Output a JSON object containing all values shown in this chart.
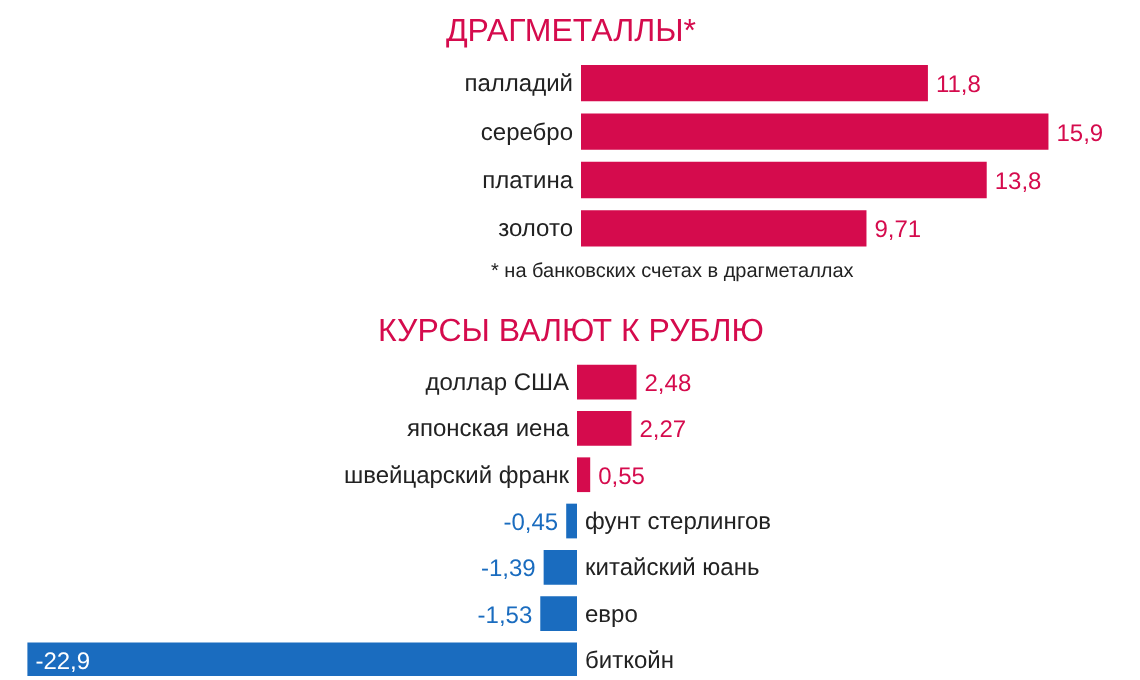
{
  "chart_data": [
    {
      "type": "bar",
      "orientation": "horizontal",
      "title": "ДРАГМЕТАЛЛЫ*",
      "categories": [
        "палладий",
        "серебро",
        "платина",
        "золото"
      ],
      "values": [
        11.8,
        15.9,
        13.8,
        9.71
      ],
      "value_labels": [
        "11,8",
        "15,9",
        "13,8",
        "9,71"
      ],
      "colors": [
        "#d50b4d",
        "#d50b4d",
        "#d50b4d",
        "#d50b4d"
      ],
      "annotations": [
        "* на банковских счетах в драгметаллах"
      ]
    },
    {
      "type": "bar",
      "orientation": "horizontal",
      "title": "КУРСЫ ВАЛЮТ К РУБЛЮ",
      "categories": [
        "доллар США",
        "японская иена",
        "швейцарский франк",
        "фунт стерлингов",
        "китайский юань",
        "евро",
        "биткойн"
      ],
      "values": [
        2.48,
        2.27,
        0.55,
        -0.45,
        -1.39,
        -1.53,
        -22.9
      ],
      "value_labels": [
        "2,48",
        "2,27",
        "0,55",
        "-0,45",
        "-1,39",
        "-1,53",
        "-22,9"
      ],
      "colors": [
        "#d50b4d",
        "#d50b4d",
        "#d50b4d",
        "#1a6cbf",
        "#1a6cbf",
        "#1a6cbf",
        "#1a6cbf"
      ]
    }
  ]
}
